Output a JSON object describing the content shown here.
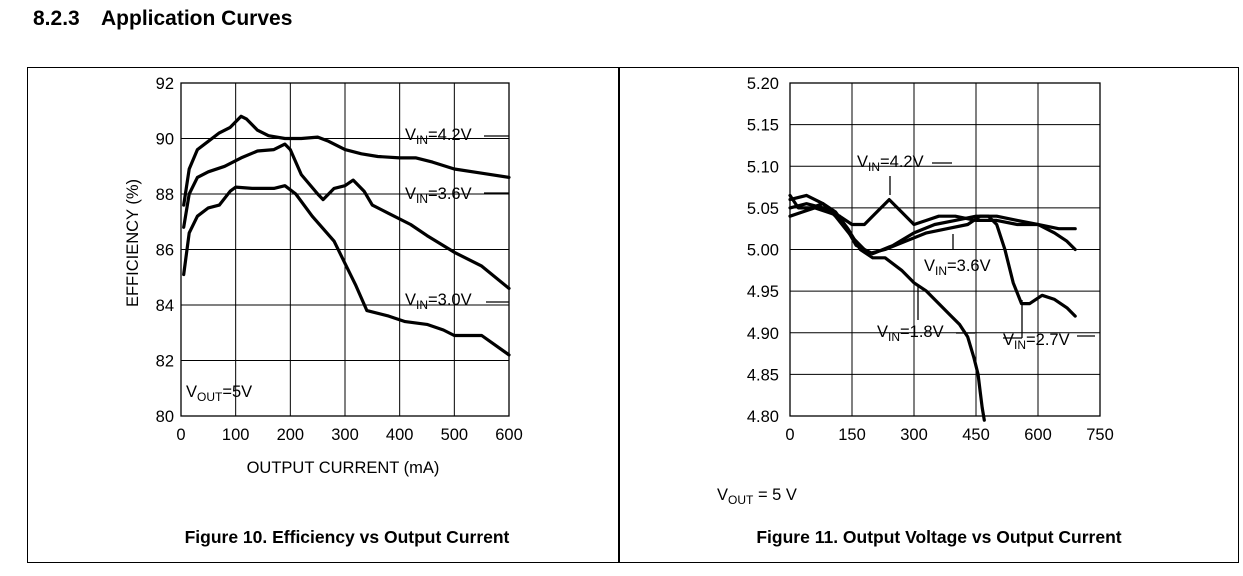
{
  "section": {
    "number": "8.2.3",
    "title": "Application Curves"
  },
  "chart_data": [
    {
      "type": "line",
      "caption": "Figure 10. Efficiency vs Output Current",
      "xlabel": "OUTPUT CURRENT (mA)",
      "ylabel": "EFFICIENCY (%)",
      "xlim": [
        0,
        600
      ],
      "ylim": [
        80,
        92
      ],
      "x_ticks": [
        0,
        100,
        200,
        300,
        400,
        500,
        600
      ],
      "y_ticks": [
        80,
        82,
        84,
        86,
        88,
        90,
        92
      ],
      "grid": true,
      "condition": {
        "prefix": "V",
        "sub": "OUT",
        "suffix": "=5V"
      },
      "series": [
        {
          "name": "VIN=4.2V",
          "label": {
            "prefix": "V",
            "sub": "IN",
            "suffix": "=4.2V"
          },
          "x": [
            5,
            15,
            30,
            50,
            70,
            90,
            110,
            120,
            140,
            160,
            190,
            220,
            250,
            270,
            300,
            330,
            360,
            400,
            430,
            460,
            500,
            550,
            600
          ],
          "y": [
            87.6,
            88.9,
            89.6,
            89.9,
            90.2,
            90.4,
            90.8,
            90.7,
            90.3,
            90.1,
            90.0,
            90.0,
            90.05,
            89.9,
            89.6,
            89.45,
            89.35,
            89.3,
            89.3,
            89.15,
            88.9,
            88.75,
            88.6
          ]
        },
        {
          "name": "VIN=3.6V",
          "label": {
            "prefix": "V",
            "sub": "IN",
            "suffix": "=3.6V"
          },
          "x": [
            5,
            15,
            30,
            50,
            80,
            110,
            140,
            170,
            190,
            200,
            220,
            250,
            260,
            280,
            300,
            315,
            335,
            350,
            380,
            420,
            450,
            500,
            550,
            600
          ],
          "y": [
            86.8,
            88.0,
            88.6,
            88.8,
            89.0,
            89.3,
            89.55,
            89.6,
            89.8,
            89.6,
            88.7,
            88.0,
            87.8,
            88.2,
            88.3,
            88.5,
            88.1,
            87.6,
            87.3,
            86.9,
            86.5,
            85.9,
            85.4,
            84.6
          ]
        },
        {
          "name": "VIN=3.0V",
          "label": {
            "prefix": "V",
            "sub": "IN",
            "suffix": "=3.0V"
          },
          "x": [
            5,
            15,
            30,
            50,
            70,
            90,
            100,
            130,
            170,
            190,
            210,
            240,
            280,
            300,
            320,
            340,
            380,
            410,
            450,
            480,
            500,
            550,
            600
          ],
          "y": [
            85.1,
            86.6,
            87.2,
            87.5,
            87.6,
            88.1,
            88.25,
            88.2,
            88.2,
            88.3,
            88.0,
            87.2,
            86.3,
            85.5,
            84.7,
            83.8,
            83.6,
            83.4,
            83.3,
            83.1,
            82.9,
            82.9,
            82.2
          ]
        }
      ]
    },
    {
      "type": "line",
      "caption": "Figure 11. Output Voltage vs Output Current",
      "xlabel": "",
      "ylabel": "",
      "xlim": [
        0,
        750
      ],
      "ylim": [
        4.8,
        5.2
      ],
      "x_ticks": [
        0,
        150,
        300,
        450,
        600,
        750
      ],
      "y_ticks": [
        "4.80",
        "4.85",
        "4.90",
        "4.95",
        "5.00",
        "5.05",
        "5.10",
        "5.15",
        "5.20"
      ],
      "grid": true,
      "condition": {
        "prefix": "V",
        "sub": "OUT",
        "suffix": " = 5 V"
      },
      "series": [
        {
          "name": "VIN=4.2V",
          "label": {
            "prefix": "V",
            "sub": "IN",
            "suffix": "=4.2V"
          },
          "x": [
            0,
            30,
            60,
            90,
            120,
            150,
            180,
            210,
            240,
            270,
            300,
            330,
            360,
            400,
            450,
            500,
            550,
            600,
            650,
            690
          ],
          "y": [
            5.04,
            5.045,
            5.05,
            5.045,
            5.04,
            5.03,
            5.03,
            5.045,
            5.06,
            5.045,
            5.03,
            5.035,
            5.04,
            5.04,
            5.035,
            5.035,
            5.03,
            5.03,
            5.025,
            5.025
          ]
        },
        {
          "name": "VIN=3.6V",
          "label": {
            "prefix": "V",
            "sub": "IN",
            "suffix": "=3.6V"
          },
          "x": [
            0,
            40,
            80,
            120,
            160,
            200,
            250,
            300,
            350,
            400,
            450,
            500,
            550,
            600,
            640,
            670,
            690
          ],
          "y": [
            5.05,
            5.055,
            5.05,
            5.04,
            5.005,
            4.995,
            5.005,
            5.02,
            5.03,
            5.035,
            5.04,
            5.04,
            5.035,
            5.03,
            5.02,
            5.01,
            5.0
          ]
        },
        {
          "name": "VIN=2.7V",
          "label": {
            "prefix": "V",
            "sub": "IN",
            "suffix": "=2.7V"
          },
          "x": [
            0,
            40,
            80,
            110,
            150,
            190,
            230,
            280,
            330,
            380,
            430,
            460,
            480,
            500,
            520,
            540,
            560,
            580,
            610,
            640,
            670,
            690
          ],
          "y": [
            5.06,
            5.065,
            5.055,
            5.04,
            5.015,
            4.995,
            5.0,
            5.01,
            5.02,
            5.025,
            5.03,
            5.04,
            5.04,
            5.03,
            5.0,
            4.96,
            4.935,
            4.935,
            4.945,
            4.94,
            4.93,
            4.92
          ]
        },
        {
          "name": "VIN=1.8V",
          "label": {
            "prefix": "V",
            "sub": "IN",
            "suffix": "=1.8V"
          },
          "x": [
            0,
            20,
            50,
            80,
            110,
            140,
            170,
            200,
            230,
            270,
            300,
            330,
            360,
            390,
            410,
            430,
            445,
            455,
            460,
            465,
            470
          ],
          "y": [
            5.065,
            5.05,
            5.05,
            5.055,
            5.045,
            5.025,
            5.0,
            4.99,
            4.99,
            4.975,
            4.96,
            4.95,
            4.935,
            4.92,
            4.91,
            4.895,
            4.87,
            4.85,
            4.83,
            4.81,
            4.795
          ]
        }
      ]
    }
  ]
}
